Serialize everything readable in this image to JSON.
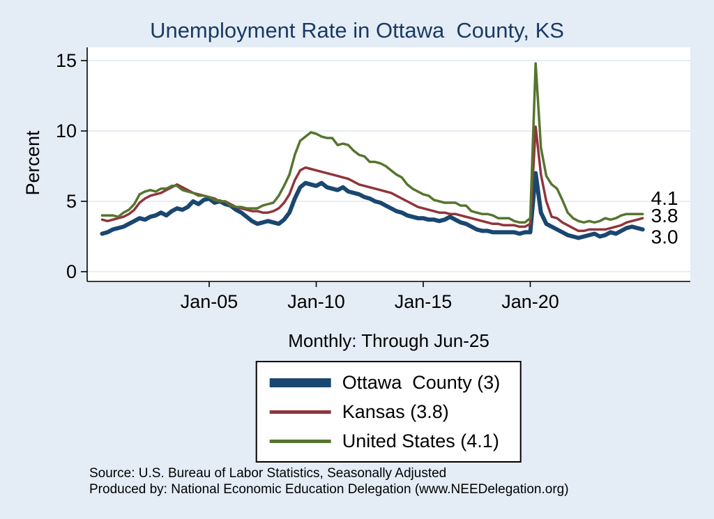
{
  "colors": {
    "background": "#e4edf6",
    "plot_background": "#ffffff",
    "grid": "#dfe7ef",
    "axis": "#000000",
    "title_text": "#1a3a64"
  },
  "sources": {
    "line1": "Source: U.S. Bureau of Labor Statistics, Seasonally Adjusted",
    "line2": "Produced by: National Economic Education Delegation (www.NEEDelegation.org)"
  },
  "chart_data": {
    "type": "line",
    "title": "Unemployment Rate in Ottawa  County, KS",
    "subtitle": "Monthly: Through Jun-25",
    "xlabel": "",
    "ylabel": "Percent",
    "ylim": [
      0,
      15
    ],
    "y_ticks": [
      0,
      5,
      10,
      15
    ],
    "x_ticks": [
      {
        "label": "Jan-05",
        "year": 2005
      },
      {
        "label": "Jan-10",
        "year": 2010
      },
      {
        "label": "Jan-15",
        "year": 2015
      },
      {
        "label": "Jan-20",
        "year": 2020
      }
    ],
    "x_start_year": 2000,
    "points_per_year": 4,
    "x_end": "Jun-25",
    "grid": true,
    "legend_position": "bottom",
    "series": [
      {
        "name": "Ottawa County",
        "legend_label": "Ottawa  County (3)",
        "end_label": "3.0",
        "color": "#1a476f",
        "values": [
          2.7,
          2.8,
          3.0,
          3.1,
          3.2,
          3.4,
          3.6,
          3.8,
          3.7,
          3.9,
          4.0,
          4.2,
          4.0,
          4.3,
          4.5,
          4.4,
          4.6,
          5.0,
          4.8,
          5.1,
          5.2,
          4.9,
          5.0,
          4.8,
          4.7,
          4.4,
          4.2,
          3.9,
          3.6,
          3.4,
          3.5,
          3.6,
          3.5,
          3.4,
          3.7,
          4.2,
          5.2,
          6.0,
          6.3,
          6.2,
          6.1,
          6.3,
          6.0,
          5.9,
          5.8,
          6.0,
          5.7,
          5.6,
          5.5,
          5.3,
          5.2,
          5.0,
          4.9,
          4.7,
          4.5,
          4.3,
          4.2,
          4.0,
          3.9,
          3.8,
          3.8,
          3.7,
          3.7,
          3.6,
          3.7,
          3.9,
          3.7,
          3.5,
          3.4,
          3.2,
          3.0,
          2.9,
          2.9,
          2.8,
          2.8,
          2.8,
          2.8,
          2.8,
          2.7,
          2.8,
          2.8,
          7.0,
          4.2,
          3.4,
          3.2,
          3.0,
          2.8,
          2.6,
          2.5,
          2.4,
          2.5,
          2.6,
          2.7,
          2.5,
          2.6,
          2.8,
          2.7,
          2.9,
          3.1,
          3.2,
          3.1,
          3.0
        ]
      },
      {
        "name": "Kansas",
        "legend_label": "Kansas (3.8)",
        "end_label": "3.8",
        "color": "#90353b",
        "values": [
          3.7,
          3.6,
          3.7,
          3.8,
          3.9,
          4.1,
          4.4,
          4.9,
          5.2,
          5.4,
          5.5,
          5.6,
          5.8,
          6.0,
          6.2,
          6.0,
          5.8,
          5.6,
          5.5,
          5.4,
          5.3,
          5.2,
          5.0,
          5.0,
          4.8,
          4.6,
          4.5,
          4.4,
          4.3,
          4.3,
          4.2,
          4.2,
          4.3,
          4.5,
          4.9,
          5.5,
          6.5,
          7.2,
          7.4,
          7.3,
          7.2,
          7.1,
          7.0,
          6.9,
          6.8,
          6.7,
          6.6,
          6.4,
          6.2,
          6.1,
          6.0,
          5.9,
          5.8,
          5.7,
          5.6,
          5.4,
          5.2,
          5.0,
          4.8,
          4.6,
          4.5,
          4.4,
          4.3,
          4.2,
          4.2,
          4.1,
          4.1,
          4.0,
          3.9,
          3.8,
          3.7,
          3.6,
          3.5,
          3.4,
          3.4,
          3.3,
          3.3,
          3.3,
          3.2,
          3.2,
          3.4,
          10.3,
          6.9,
          5.0,
          3.9,
          3.8,
          3.5,
          3.3,
          3.1,
          2.9,
          2.9,
          3.0,
          3.0,
          3.0,
          3.0,
          3.1,
          3.2,
          3.3,
          3.5,
          3.6,
          3.7,
          3.8
        ]
      },
      {
        "name": "United States",
        "legend_label": "United States (4.1)",
        "end_label": "4.1",
        "color": "#55752f",
        "values": [
          4.0,
          4.0,
          4.0,
          3.9,
          4.2,
          4.4,
          4.8,
          5.5,
          5.7,
          5.8,
          5.7,
          5.9,
          5.9,
          6.1,
          6.1,
          5.8,
          5.7,
          5.6,
          5.4,
          5.4,
          5.3,
          5.1,
          5.0,
          5.0,
          4.7,
          4.6,
          4.6,
          4.5,
          4.5,
          4.5,
          4.7,
          4.8,
          4.9,
          5.4,
          6.1,
          6.9,
          8.3,
          9.3,
          9.6,
          9.9,
          9.8,
          9.6,
          9.5,
          9.5,
          9.0,
          9.1,
          9.0,
          8.6,
          8.3,
          8.2,
          7.8,
          7.8,
          7.7,
          7.5,
          7.2,
          6.9,
          6.7,
          6.2,
          5.9,
          5.7,
          5.5,
          5.4,
          5.1,
          5.0,
          4.9,
          4.9,
          4.9,
          4.7,
          4.7,
          4.3,
          4.2,
          4.1,
          4.1,
          4.0,
          3.8,
          3.8,
          3.8,
          3.6,
          3.5,
          3.5,
          3.8,
          14.8,
          8.8,
          6.8,
          6.2,
          5.9,
          5.1,
          4.2,
          3.8,
          3.6,
          3.5,
          3.6,
          3.5,
          3.6,
          3.8,
          3.7,
          3.8,
          4.0,
          4.1,
          4.1,
          4.1,
          4.1
        ]
      }
    ]
  }
}
